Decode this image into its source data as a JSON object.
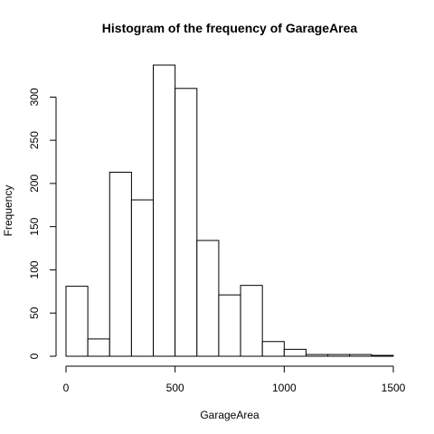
{
  "chart_data": {
    "type": "bar",
    "title": "Histogram of the frequency of GarageArea",
    "xlabel": "GarageArea",
    "ylabel": "Frequency",
    "bin_width": 100,
    "bin_edges": [
      0,
      100,
      200,
      300,
      400,
      500,
      600,
      700,
      800,
      900,
      1000,
      1100,
      1200,
      1300,
      1400,
      1500
    ],
    "values": [
      81,
      20,
      213,
      181,
      337,
      310,
      134,
      71,
      82,
      17,
      8,
      2,
      2,
      2,
      1
    ],
    "xlim": [
      0,
      1500
    ],
    "ylim": [
      0,
      337
    ],
    "x_ticks": [
      0,
      500,
      1000,
      1500
    ],
    "y_ticks": [
      0,
      50,
      100,
      150,
      200,
      250,
      300
    ],
    "grid": false,
    "legend": "none"
  }
}
